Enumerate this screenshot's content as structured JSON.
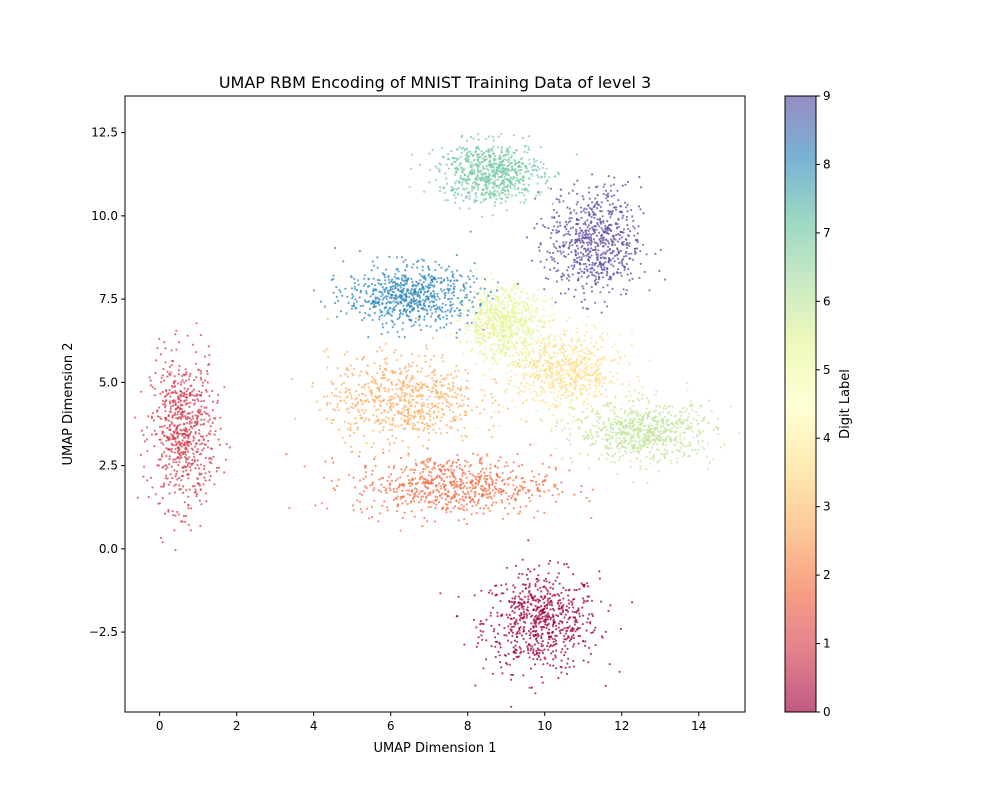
{
  "chart_data": {
    "type": "scatter",
    "title": "UMAP RBM Encoding of MNIST Training Data of level 3",
    "xlabel": "UMAP Dimension 1",
    "ylabel": "UMAP Dimension 2",
    "xlim": [
      -0.9,
      15.2
    ],
    "ylim": [
      -4.9,
      13.6
    ],
    "xticks": [
      0,
      2,
      4,
      6,
      8,
      10,
      12,
      14
    ],
    "yticks": [
      -2.5,
      0.0,
      2.5,
      5.0,
      7.5,
      10.0,
      12.5
    ],
    "xtick_labels": [
      "0",
      "2",
      "4",
      "6",
      "8",
      "10",
      "12",
      "14"
    ],
    "ytick_labels": [
      "−2.5",
      "0.0",
      "2.5",
      "5.0",
      "7.5",
      "10.0",
      "12.5"
    ],
    "grid": false,
    "colorbar": {
      "label": "Digit Label",
      "min": 0,
      "max": 9,
      "ticks": [
        0,
        1,
        2,
        3,
        4,
        5,
        6,
        7,
        8,
        9
      ],
      "tick_labels": [
        "0",
        "1",
        "2",
        "3",
        "4",
        "5",
        "6",
        "7",
        "8",
        "9"
      ],
      "colormap": "Spectral",
      "colors": [
        "#9e0142",
        "#d53e4f",
        "#f46d43",
        "#fdae61",
        "#fee08b",
        "#ffffbf",
        "#e6f598",
        "#abdda4",
        "#66c2a5",
        "#3288bd",
        "#5e4fa2"
      ]
    },
    "clusters": [
      {
        "label": 0,
        "color": "#9e0142",
        "center": [
          9.9,
          -2.2
        ],
        "spread": [
          1.0,
          1.0
        ]
      },
      {
        "label": 1,
        "color": "#d53e4f",
        "center": [
          0.6,
          3.5
        ],
        "spread": [
          0.55,
          1.5
        ]
      },
      {
        "label": 2,
        "color": "#f46d43",
        "center": [
          7.6,
          1.9
        ],
        "spread": [
          1.7,
          0.6
        ]
      },
      {
        "label": 3,
        "color": "#fdae61",
        "center": [
          6.3,
          4.5
        ],
        "spread": [
          1.3,
          0.9
        ]
      },
      {
        "label": 4,
        "color": "#fee08b",
        "center": [
          10.5,
          5.3
        ],
        "spread": [
          1.0,
          0.8
        ]
      },
      {
        "label": 5,
        "color": "#e6f598",
        "center": [
          8.9,
          6.8
        ],
        "spread": [
          0.7,
          0.7
        ]
      },
      {
        "label": 6,
        "color": "#c2e699",
        "center": [
          12.6,
          3.5
        ],
        "spread": [
          1.2,
          0.6
        ]
      },
      {
        "label": 7,
        "color": "#78c9a4",
        "center": [
          8.6,
          11.3
        ],
        "spread": [
          0.9,
          0.6
        ]
      },
      {
        "label": 8,
        "color": "#3288bd",
        "center": [
          6.5,
          7.6
        ],
        "spread": [
          1.1,
          0.6
        ]
      },
      {
        "label": 9,
        "color": "#5e4fa2",
        "center": [
          11.3,
          9.2
        ],
        "spread": [
          0.8,
          1.1
        ]
      }
    ]
  }
}
